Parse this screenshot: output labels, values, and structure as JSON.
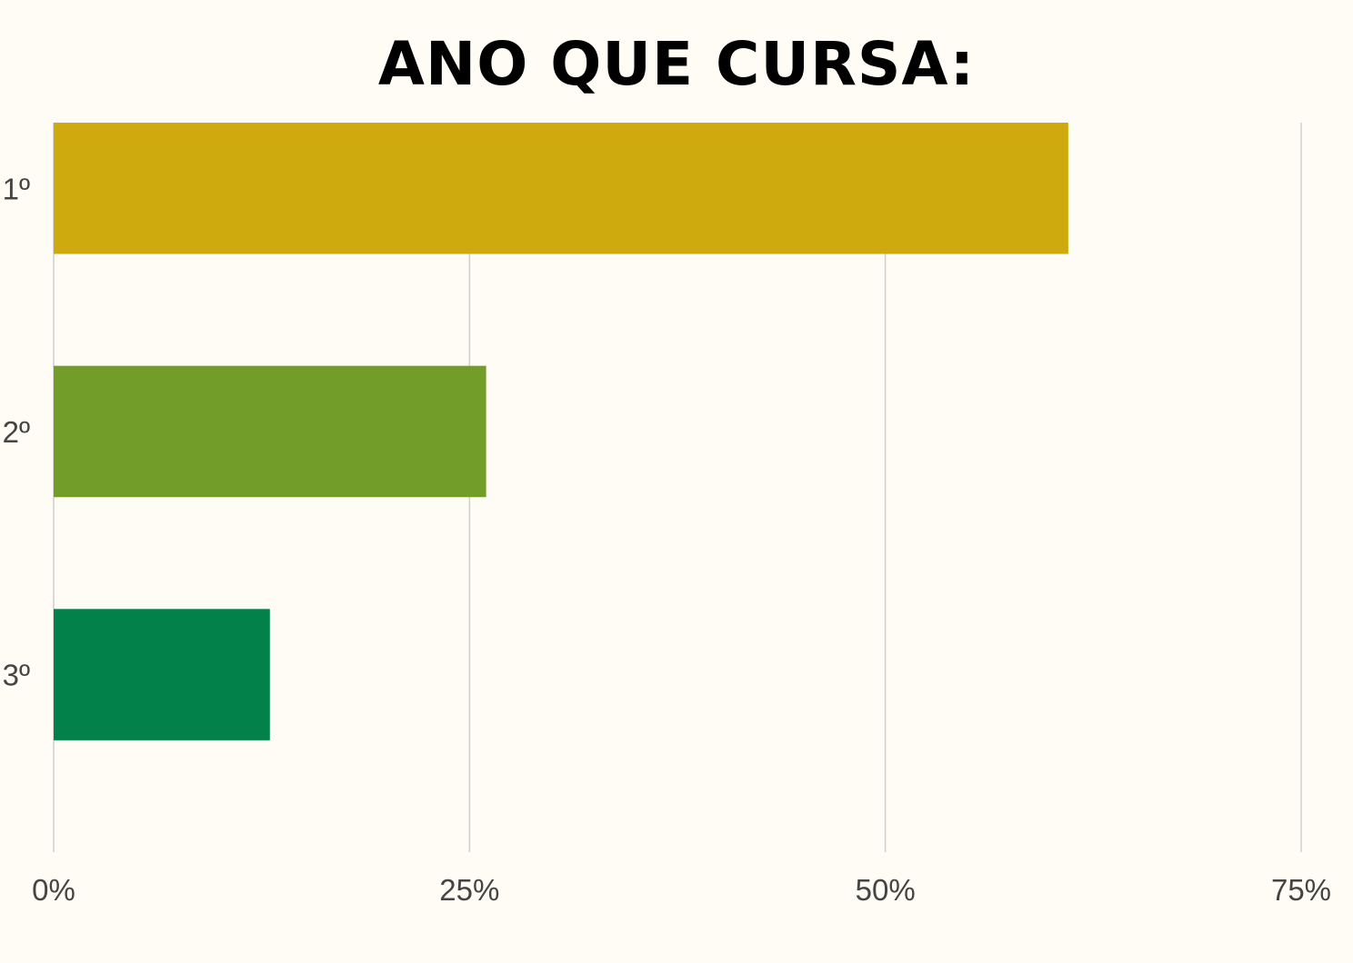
{
  "chart_data": {
    "type": "bar",
    "orientation": "horizontal",
    "title": "ANO QUE CURSA:",
    "categories": [
      "1º",
      "2º",
      "3º"
    ],
    "values": [
      61,
      26,
      13
    ],
    "colors": [
      "#cfaa0e",
      "#739d29",
      "#02814a"
    ],
    "xlim": [
      0,
      75
    ],
    "xticks": [
      0,
      25,
      50,
      75
    ],
    "xtick_labels": [
      "0%",
      "25%",
      "50%",
      "75%"
    ],
    "grid": true
  }
}
